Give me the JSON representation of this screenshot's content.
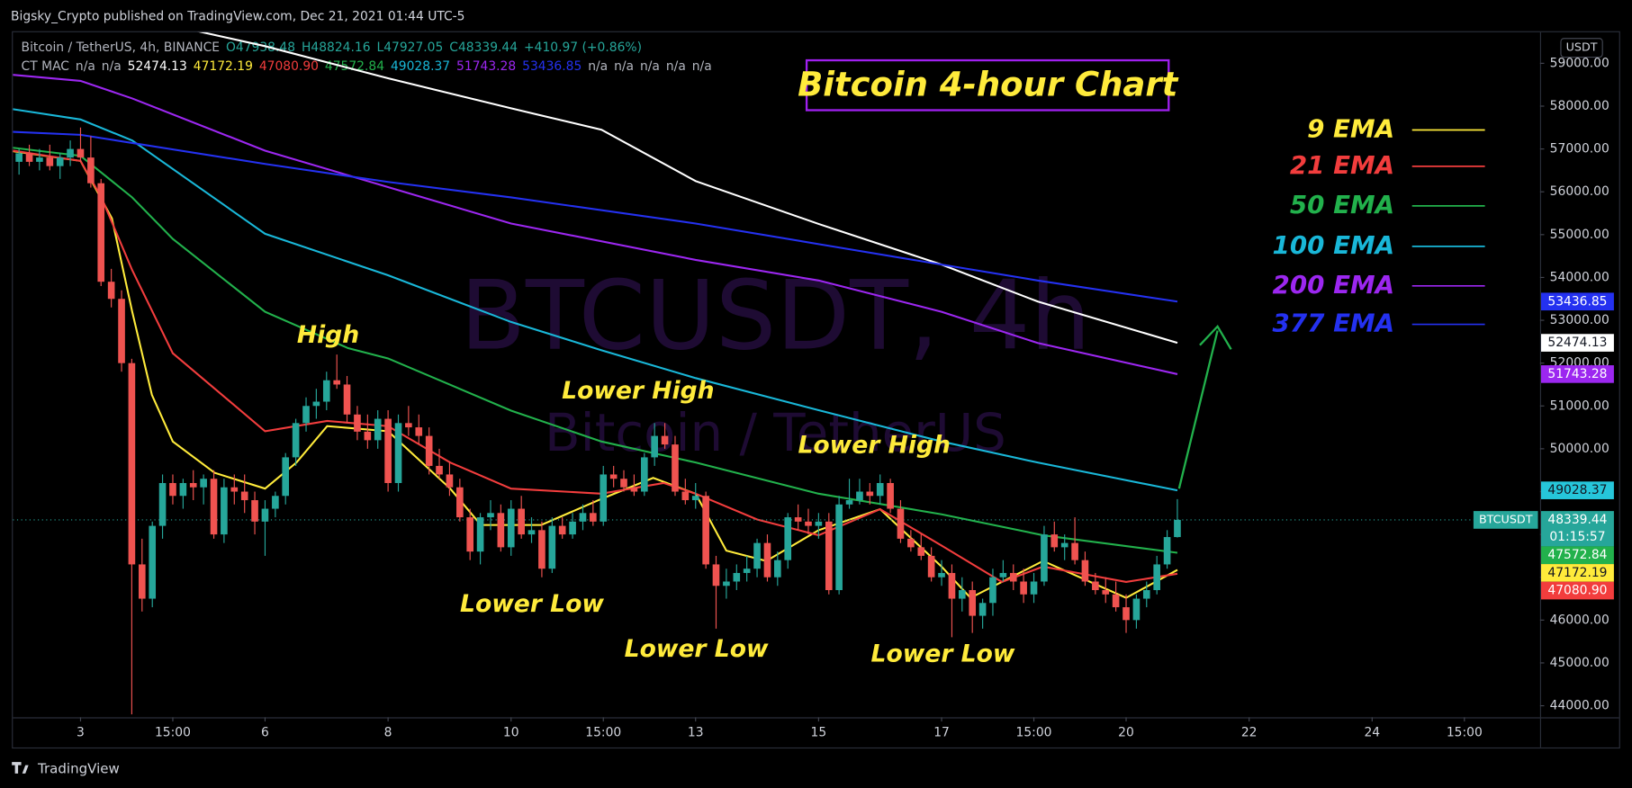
{
  "page": {
    "publisher_line": "Bigsky_Crypto published on TradingView.com, Dec 21, 2021 01:44 UTC-5",
    "footer_brand": "TradingView"
  },
  "chart_data": {
    "type": "candlestick",
    "title": "Bitcoin 4-hour Chart",
    "currency": "USDT",
    "header": {
      "symbol": "Bitcoin / TetherUS, 4h, BINANCE",
      "values": [
        "O47938.48",
        "H48824.16",
        "L47927.05",
        "C48339.44",
        "+410.97 (+0.86%)"
      ],
      "symbol_color": "#b2b5be",
      "value_color": "#26a69a"
    },
    "indicator_row": [
      {
        "text": "CT MAC",
        "color": "#b2b5be"
      },
      {
        "text": "n/a",
        "color": "#b2b5be"
      },
      {
        "text": "n/a",
        "color": "#b2b5be"
      },
      {
        "text": "52474.13",
        "color": "#ffffff"
      },
      {
        "text": "47172.19",
        "color": "#ffeb3b"
      },
      {
        "text": "47080.90",
        "color": "#f23d3d"
      },
      {
        "text": "47572.84",
        "color": "#22b14c"
      },
      {
        "text": "49028.37",
        "color": "#19b7d8"
      },
      {
        "text": "51743.28",
        "color": "#9c27f0"
      },
      {
        "text": "53436.85",
        "color": "#2431f0"
      },
      {
        "text": "n/a",
        "color": "#b2b5be"
      },
      {
        "text": "n/a",
        "color": "#b2b5be"
      },
      {
        "text": "n/a",
        "color": "#b2b5be"
      },
      {
        "text": "n/a",
        "color": "#b2b5be"
      },
      {
        "text": "n/a",
        "color": "#b2b5be"
      }
    ],
    "watermark": [
      "BTCUSDT, 4h",
      "Bitcoin / TetherUS"
    ],
    "annotations": [
      "High",
      "Lower High",
      "Lower High",
      "Lower Low",
      "Lower Low",
      "Lower Low"
    ],
    "up_color": "#26a69a",
    "down_color": "#ef5350",
    "grid": false,
    "xlim": [
      1.9,
      26.73
    ],
    "ylim": [
      43730,
      59750
    ],
    "xticks": [
      3,
      {
        "value": 4.5,
        "label": "15:00"
      },
      6,
      8,
      10,
      {
        "value": 11.5,
        "label": "15:00"
      },
      13,
      15,
      17,
      {
        "value": 18.5,
        "label": "15:00"
      },
      20,
      22,
      24,
      {
        "value": 25.5,
        "label": "15:00"
      }
    ],
    "yticks": [
      {
        "value": 44000,
        "label": "44000.00"
      },
      {
        "value": 45000,
        "label": "45000.00"
      },
      {
        "value": 46000,
        "label": "46000.00"
      },
      {
        "value": 47000,
        "label": "47000.00"
      },
      {
        "value": 48000,
        "label": "48000.00"
      },
      {
        "value": 49000,
        "label": "49000.00"
      },
      {
        "value": 50000,
        "label": "50000.00"
      },
      {
        "value": 51000,
        "label": "51000.00"
      },
      {
        "value": 52000,
        "label": "52000.00"
      },
      {
        "value": 53000,
        "label": "53000.00"
      },
      {
        "value": 54000,
        "label": "54000.00"
      },
      {
        "value": 55000,
        "label": "55000.00"
      },
      {
        "value": 56000,
        "label": "56000.00"
      },
      {
        "value": 57000,
        "label": "57000.00"
      },
      {
        "value": 58000,
        "label": "58000.00"
      },
      {
        "value": 59000,
        "label": "59000.00"
      }
    ],
    "x": [
      2,
      2.167,
      2.333,
      2.5,
      2.667,
      2.833,
      3,
      3.167,
      3.333,
      3.5,
      3.667,
      3.833,
      4,
      4.167,
      4.333,
      4.5,
      4.667,
      4.833,
      5,
      5.167,
      5.333,
      5.5,
      5.667,
      5.833,
      6,
      6.167,
      6.333,
      6.5,
      6.667,
      6.833,
      7,
      7.167,
      7.333,
      7.5,
      7.667,
      7.833,
      8,
      8.167,
      8.333,
      8.5,
      8.667,
      8.833,
      9,
      9.167,
      9.333,
      9.5,
      9.667,
      9.833,
      10,
      10.167,
      10.333,
      10.5,
      10.667,
      10.833,
      11,
      11.167,
      11.333,
      11.5,
      11.667,
      11.833,
      12,
      12.167,
      12.333,
      12.5,
      12.667,
      12.833,
      13,
      13.167,
      13.333,
      13.5,
      13.667,
      13.833,
      14,
      14.167,
      14.333,
      14.5,
      14.667,
      14.833,
      15,
      15.167,
      15.333,
      15.5,
      15.667,
      15.833,
      16,
      16.167,
      16.333,
      16.5,
      16.667,
      16.833,
      17,
      17.167,
      17.333,
      17.5,
      17.667,
      17.833,
      18,
      18.167,
      18.333,
      18.5,
      18.667,
      18.833,
      19,
      19.167,
      19.333,
      19.5,
      19.667,
      19.833,
      20,
      20.167,
      20.333,
      20.5,
      20.667,
      20.833
    ],
    "open": [
      56700,
      56900,
      56700,
      56800,
      56600,
      56800,
      57000,
      56800,
      56200,
      53900,
      53500,
      52000,
      47300,
      46500,
      48200,
      49200,
      48900,
      49200,
      49100,
      49300,
      48000,
      49100,
      49000,
      48800,
      48300,
      48600,
      48900,
      49800,
      50600,
      51000,
      51100,
      51600,
      51500,
      50800,
      50400,
      50200,
      50700,
      49200,
      50600,
      50500,
      50300,
      49600,
      49400,
      49100,
      48400,
      47600,
      48400,
      48500,
      47700,
      48600,
      48000,
      48100,
      47200,
      48200,
      48000,
      48300,
      48500,
      48300,
      49400,
      49300,
      49100,
      49000,
      49800,
      50300,
      50100,
      49000,
      48800,
      48900,
      47300,
      46800,
      46900,
      47100,
      47200,
      47800,
      47000,
      47400,
      48400,
      48300,
      48200,
      48300,
      46700,
      48700,
      48800,
      49000,
      48900,
      49200,
      48600,
      47900,
      47700,
      47500,
      47000,
      47100,
      46500,
      46700,
      46100,
      46400,
      47000,
      47100,
      46900,
      46600,
      46900,
      48000,
      47700,
      47800,
      47400,
      46900,
      46700,
      46600,
      46300,
      46000,
      46500,
      46700,
      47300,
      47938.48
    ],
    "high": [
      57000,
      57100,
      57000,
      57100,
      56900,
      57200,
      57500,
      57300,
      56300,
      54200,
      53700,
      52100,
      47900,
      48300,
      49400,
      49400,
      49300,
      49500,
      49400,
      49500,
      49300,
      49400,
      49400,
      49000,
      48800,
      49000,
      49900,
      50700,
      51200,
      51400,
      51800,
      52200,
      51700,
      51000,
      50800,
      50900,
      50900,
      50800,
      51000,
      50800,
      50500,
      50000,
      49700,
      49300,
      48600,
      48500,
      48800,
      48700,
      48800,
      48900,
      48400,
      48300,
      48400,
      48400,
      48500,
      48700,
      48800,
      49600,
      49600,
      49500,
      49400,
      49900,
      50600,
      50600,
      50300,
      49300,
      49200,
      49000,
      47500,
      47200,
      47300,
      47500,
      47900,
      48000,
      47600,
      48500,
      48700,
      48600,
      48500,
      48500,
      48900,
      49300,
      49300,
      49200,
      49400,
      49300,
      48800,
      48100,
      48000,
      47700,
      47400,
      47300,
      47000,
      46900,
      46500,
      47200,
      47400,
      47300,
      47200,
      47100,
      48200,
      48300,
      48000,
      48400,
      47600,
      47100,
      47000,
      46900,
      46600,
      46600,
      46900,
      47500,
      48100,
      48824.16
    ],
    "low": [
      56400,
      56600,
      56500,
      56500,
      56300,
      56600,
      56700,
      56100,
      53800,
      53300,
      51800,
      43800,
      46200,
      46300,
      47900,
      48700,
      48600,
      48800,
      48700,
      47900,
      47800,
      48700,
      48500,
      48000,
      47500,
      48400,
      48700,
      49600,
      50400,
      50700,
      50900,
      51400,
      50600,
      50200,
      50000,
      50000,
      49000,
      49000,
      50300,
      50100,
      49400,
      49300,
      48900,
      48300,
      47400,
      47300,
      48100,
      47600,
      47500,
      47900,
      47800,
      47000,
      47100,
      47900,
      47900,
      48100,
      48200,
      48200,
      49100,
      49000,
      48900,
      48900,
      49600,
      50000,
      48900,
      48700,
      48600,
      47200,
      45800,
      46500,
      46700,
      46900,
      47000,
      46900,
      46800,
      47200,
      48100,
      48000,
      47900,
      46600,
      46600,
      48600,
      48700,
      48700,
      48700,
      48500,
      47800,
      47600,
      47400,
      46900,
      46800,
      45600,
      46200,
      45700,
      45800,
      46100,
      46900,
      46700,
      46400,
      46400,
      46800,
      47600,
      47400,
      47300,
      46800,
      46600,
      46400,
      46200,
      45700,
      45800,
      46300,
      46600,
      47200,
      47927.05
    ],
    "close": [
      56900,
      56700,
      56800,
      56600,
      56800,
      57000,
      56800,
      56200,
      53900,
      53500,
      52000,
      47300,
      46500,
      48200,
      49200,
      48900,
      49200,
      49100,
      49300,
      48000,
      49100,
      49000,
      48800,
      48300,
      48600,
      48900,
      49800,
      50600,
      51000,
      51100,
      51600,
      51500,
      50800,
      50400,
      50200,
      50700,
      49200,
      50600,
      50500,
      50300,
      49600,
      49400,
      49100,
      48400,
      47600,
      48400,
      48500,
      47700,
      48600,
      48000,
      48100,
      47200,
      48200,
      48000,
      48300,
      48500,
      48300,
      49400,
      49300,
      49100,
      49000,
      49800,
      50300,
      50100,
      49000,
      48800,
      48900,
      47300,
      46800,
      46900,
      47100,
      47200,
      47800,
      47000,
      47400,
      48400,
      48300,
      48200,
      48300,
      46700,
      48700,
      48800,
      49000,
      48900,
      49200,
      48600,
      47900,
      47700,
      47500,
      47000,
      47100,
      46500,
      46700,
      46100,
      46400,
      47000,
      47100,
      46900,
      46600,
      46900,
      48000,
      47700,
      47800,
      47400,
      46900,
      46700,
      46600,
      46300,
      46000,
      46500,
      46700,
      47300,
      47938.48,
      48339.44
    ],
    "series": [
      {
        "color": "#ffffff",
        "x": [
          4.9,
          6,
          8,
          10,
          11.47,
          13,
          15,
          17,
          18.56,
          20.833
        ],
        "values": [
          59750,
          59400,
          58650,
          57950,
          57450,
          56250,
          55250,
          54300,
          53440,
          52474.13
        ]
      },
      {
        "name": "9 EMA",
        "color": "#ffeb3b",
        "x": [
          1.9,
          3,
          3.51,
          3.84,
          4.16,
          4.5,
          5.18,
          6,
          6.51,
          7.01,
          8,
          9.01,
          9.51,
          10.49,
          11.47,
          12.31,
          13,
          13.5,
          14.15,
          15,
          16,
          17,
          17.47,
          18.65,
          20,
          20.833
        ],
        "values": [
          56950,
          56720,
          55380,
          53200,
          51260,
          50170,
          49440,
          49070,
          49680,
          50530,
          50410,
          49070,
          48220,
          48220,
          48830,
          49320,
          48950,
          47620,
          47380,
          48100,
          48590,
          47250,
          46520,
          47380,
          46520,
          47172.19
        ]
      },
      {
        "name": "21 EMA",
        "color": "#f23d3d",
        "x": [
          1.9,
          3,
          3.34,
          3.84,
          4.5,
          6,
          7.01,
          8,
          9.01,
          10,
          11.47,
          12.48,
          13,
          14,
          15,
          16,
          17,
          17.98,
          18.65,
          20,
          20.833
        ],
        "values": [
          56960,
          56720,
          55870,
          54170,
          52230,
          50410,
          50650,
          50530,
          49680,
          49070,
          48950,
          49200,
          48950,
          48350,
          47980,
          48590,
          47740,
          46890,
          47250,
          46890,
          47080.9
        ]
      },
      {
        "name": "50 EMA",
        "color": "#22b14c",
        "x": [
          1.9,
          3,
          3.84,
          4.5,
          6,
          7.35,
          8,
          10,
          11.47,
          13,
          15,
          17,
          18.65,
          20.833
        ],
        "values": [
          57030,
          56840,
          55870,
          54900,
          53200,
          52350,
          52110,
          50890,
          50170,
          49680,
          48950,
          48470,
          47980,
          47572.84
        ]
      },
      {
        "name": "100 EMA",
        "color": "#19b7d8",
        "x": [
          1.9,
          3,
          3.84,
          6,
          8,
          10,
          11.47,
          13,
          15,
          17,
          18.56,
          20.833
        ],
        "values": [
          57930,
          57690,
          57200,
          55020,
          54050,
          52960,
          52300,
          51650,
          50900,
          50170,
          49680,
          49028.37
        ]
      },
      {
        "name": "200 EMA",
        "color": "#9c27f0",
        "x": [
          1.9,
          3,
          3.84,
          6,
          8,
          10,
          13,
          15,
          17,
          18.56,
          20.833
        ],
        "values": [
          58730,
          58590,
          58180,
          56960,
          56110,
          55260,
          54410,
          53930,
          53200,
          52470,
          51743.28
        ]
      },
      {
        "name": "377 EMA",
        "color": "#2431f0",
        "x": [
          1.9,
          3,
          6,
          8,
          10,
          13,
          15,
          17,
          18.56,
          20.833
        ],
        "values": [
          57400,
          57330,
          56650,
          56230,
          55870,
          55260,
          54780,
          54300,
          53930,
          53436.85
        ]
      }
    ],
    "price_tags": [
      {
        "value": 53436.85,
        "label": "53436.85",
        "color": "#2431f0",
        "text_color": "#ffffff"
      },
      {
        "value": 52474.13,
        "label": "52474.13",
        "color": "#ffffff",
        "text_color": "#131722"
      },
      {
        "value": 51743.28,
        "label": "51743.28",
        "color": "#9c27f0",
        "text_color": "#ffffff"
      },
      {
        "value": 49028.37,
        "label": "49028.37",
        "color": "#26c6da",
        "text_color": "#131722"
      },
      {
        "value": 48339.44,
        "label": "48339.44",
        "color": "#26a69a",
        "text_color": "#ffffff",
        "name": "BTCUSDT",
        "countdown": "01:15:57"
      },
      {
        "value": 47572.84,
        "label": "47572.84",
        "color": "#22b14c",
        "text_color": "#ffffff"
      },
      {
        "value": 47172.19,
        "label": "47172.19",
        "color": "#ffeb3b",
        "text_color": "#131722"
      },
      {
        "value": 47080.9,
        "label": "47080.90",
        "color": "#f23d3d",
        "text_color": "#ffffff"
      }
    ]
  }
}
